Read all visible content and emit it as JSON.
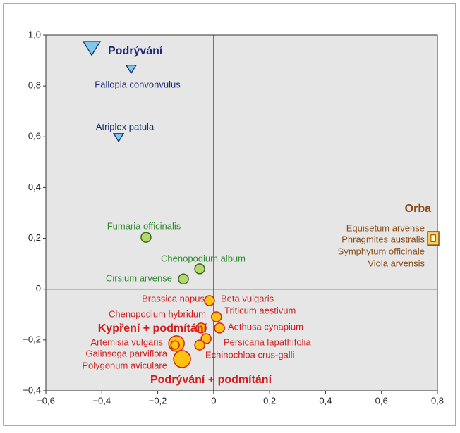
{
  "chart_data": {
    "type": "scatter",
    "xlim": [
      -0.6,
      0.8
    ],
    "ylim": [
      -0.4,
      1.0
    ],
    "xticks": [
      {
        "value": -0.6,
        "label": "−0,6"
      },
      {
        "value": -0.4,
        "label": "−0,4"
      },
      {
        "value": -0.2,
        "label": "−0,2"
      },
      0,
      {
        "value": 0.2,
        "label": "0,2"
      },
      {
        "value": 0.4,
        "label": "0,4"
      },
      {
        "value": 0.6,
        "label": "0,6"
      },
      {
        "value": 0.8,
        "label": "0,8"
      }
    ],
    "yticks": [
      {
        "value": -0.4,
        "label": "−0,4"
      },
      {
        "value": -0.2,
        "label": "−0,2"
      },
      0,
      {
        "value": 0.2,
        "label": "0,2"
      },
      {
        "value": 0.4,
        "label": "0,4"
      },
      {
        "value": 0.6,
        "label": "0,6"
      },
      {
        "value": 0.8,
        "label": "0,8"
      },
      {
        "value": 1.0,
        "label": "1,0"
      }
    ],
    "series": [
      {
        "marker": "triangle",
        "color": "#7ec8e8",
        "text_color": "#1b2a78",
        "group_labels": [
          "Podrývání"
        ],
        "labels": [
          "Fallopia convonvulus",
          "Atriplex patula"
        ],
        "x": [
          -0.436,
          -0.295,
          -0.34
        ],
        "values": [
          0.95,
          0.867,
          0.598
        ],
        "sizes": [
          12,
          7,
          7
        ]
      },
      {
        "marker": "circle",
        "color": "#b5d86a",
        "text_color": "#2e8b2e",
        "group_labels": [],
        "labels": [
          "Fumaria officinalis",
          "Chenopodium album",
          "Cirsium arvense"
        ],
        "x": [
          -0.242,
          -0.05,
          -0.108
        ],
        "values": [
          0.204,
          0.08,
          0.04
        ],
        "sizes": [
          7,
          7,
          7
        ]
      },
      {
        "marker": "square",
        "color": "#f5d060",
        "text_color": "#8b4a12",
        "group_labels": [
          "Orba"
        ],
        "labels": [
          "Equisetum arvense",
          "Phragmites australis",
          "Symphytum officinale",
          "Viola arvensis"
        ],
        "x": [
          0.785
        ],
        "values": [
          0.2
        ],
        "sizes": [
          8
        ]
      },
      {
        "marker": "circle",
        "color": "#ffc20e",
        "text_color": "#d01c1c",
        "group_labels": [
          "Kypření + podmítání",
          "Podrývání + podmítání"
        ],
        "labels": [
          "Brassica napus",
          "Beta vulgaris",
          "Chenopodium hybridum",
          "Triticum aestivum",
          "Aethusa cynapium",
          "Artemisia vulgaris",
          "Persicaria lapathifolia",
          "Galinsoga parviflora",
          "Echinochloa crus-galli",
          "Polygonum aviculare"
        ],
        "x": [
          -0.015,
          0.01,
          -0.045,
          0.021,
          -0.027,
          -0.133,
          -0.138,
          -0.05,
          -0.113
        ],
        "values": [
          -0.045,
          -0.109,
          -0.153,
          -0.153,
          -0.195,
          -0.214,
          -0.22,
          -0.22,
          -0.275
        ],
        "sizes": [
          7,
          7,
          7,
          7,
          7,
          11,
          6,
          7,
          12
        ]
      }
    ]
  }
}
